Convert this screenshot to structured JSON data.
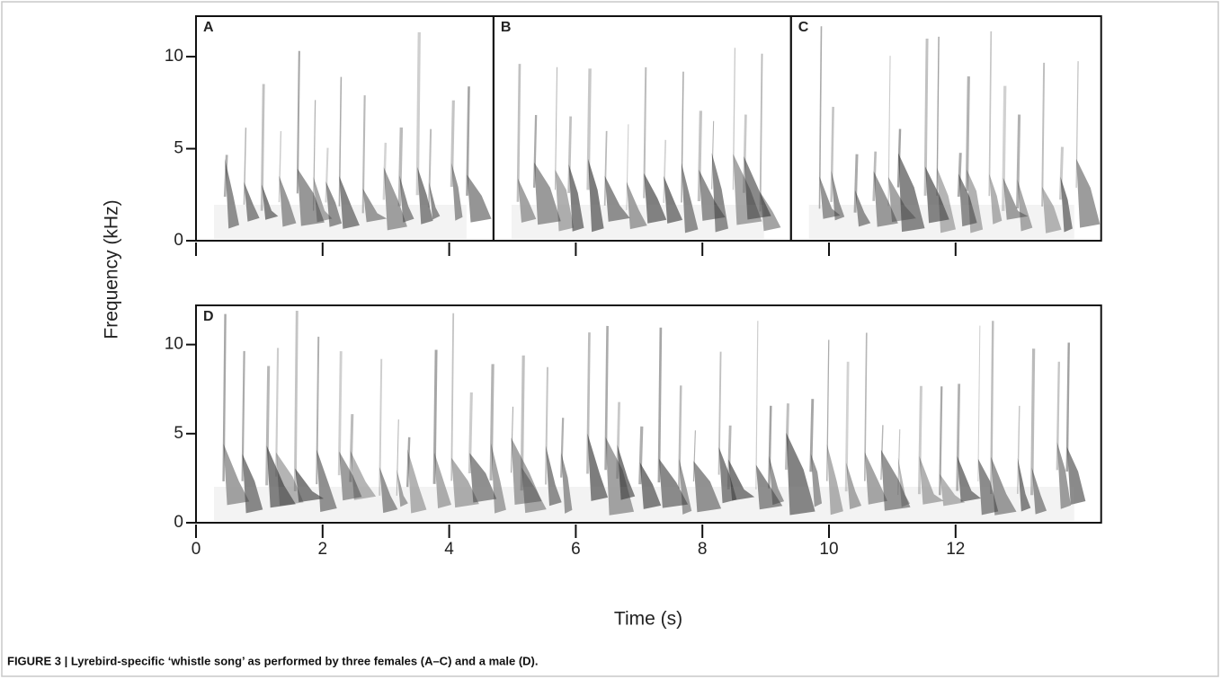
{
  "figure": {
    "y_axis_label": "Frequency (kHz)",
    "x_axis_label": "Time (s)",
    "ylim": [
      0,
      12.2
    ],
    "yticks": [
      0,
      5,
      10
    ],
    "xticks": [
      0,
      2,
      4,
      6,
      8,
      10,
      12
    ],
    "panels": [
      {
        "label": "A",
        "xlim": [
          0,
          4.7
        ]
      },
      {
        "label": "B",
        "xlim": [
          4.7,
          9.4
        ]
      },
      {
        "label": "C",
        "xlim": [
          9.4,
          14.3
        ]
      },
      {
        "label": "D",
        "xlim": [
          0,
          14.3
        ]
      }
    ],
    "caption": "FIGURE 3 | Lyrebird-specific ‘whistle song’ as performed by three females (A–C) and a male (D)."
  }
}
